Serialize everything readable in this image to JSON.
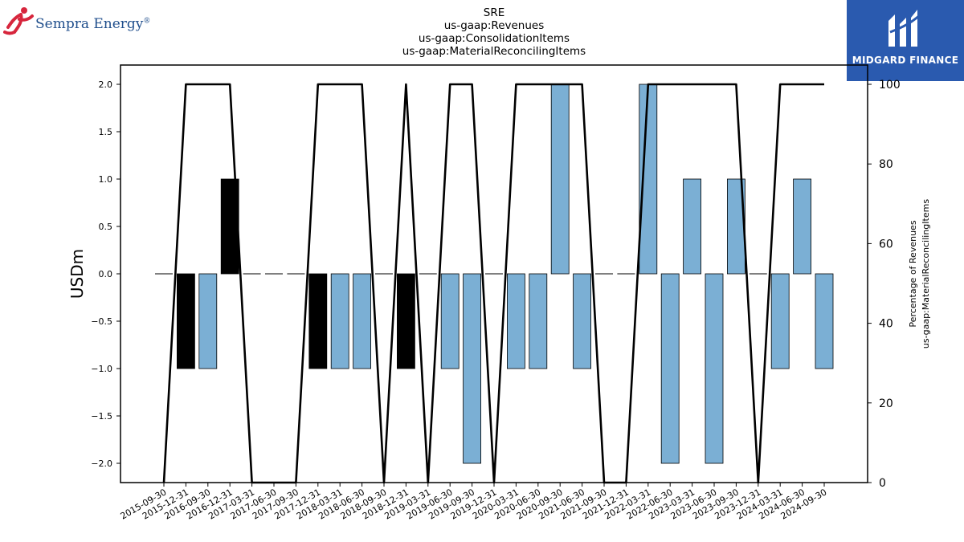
{
  "branding": {
    "left_logo_text": "Sempra Energy",
    "left_logo_mark": "®",
    "left_logo_icon": "running-figure-icon",
    "right_logo_text": "MIDGARD FINANCE",
    "right_logo_icon": "midgard-m-icon",
    "right_logo_bg": "#2a5aaf"
  },
  "chart_data": {
    "type": "bar",
    "title_lines": [
      "SRE",
      "us-gaap:Revenues",
      "us-gaap:ConsolidationItems",
      "us-gaap:MaterialReconcilingItems"
    ],
    "ylabel": "USDm",
    "y2label_lines": [
      "Percentage of Revenues",
      "us-gaap:MaterialReconcilingItems"
    ],
    "ylim": [
      -2.2,
      2.2
    ],
    "y2lim": [
      0,
      100
    ],
    "yticks": [
      "2.0",
      "1.5",
      "1.0",
      "0.5",
      "0.0",
      "−0.5",
      "−1.0",
      "−1.5",
      "−2.0"
    ],
    "y2ticks": [
      "100",
      "80",
      "60",
      "40",
      "20",
      "0"
    ],
    "categories": [
      "2015-09-30",
      "2015-12-31",
      "2016-09-30",
      "2016-12-31",
      "2017-03-31",
      "2017-06-30",
      "2017-09-30",
      "2017-12-31",
      "2018-03-31",
      "2018-06-30",
      "2018-09-30",
      "2018-12-31",
      "2019-03-31",
      "2019-06-30",
      "2019-09-30",
      "2019-12-31",
      "2020-03-31",
      "2020-06-30",
      "2020-09-30",
      "2021-06-30",
      "2021-09-30",
      "2021-12-31",
      "2022-03-31",
      "2022-06-30",
      "2023-03-31",
      "2023-06-30",
      "2023-09-30",
      "2023-12-31",
      "2024-03-31",
      "2024-06-30",
      "2024-09-30"
    ],
    "values": [
      0,
      -1,
      -1,
      1,
      0,
      0,
      0,
      -1,
      -1,
      -1,
      0,
      -1,
      0,
      -1,
      -2,
      0,
      -1,
      -1,
      2,
      -1,
      0,
      0,
      2,
      -2,
      1,
      -2,
      1,
      0,
      -1,
      1,
      -1
    ],
    "bar_colors": [
      "#000000",
      "#000000",
      "#7bafd4",
      "#000000",
      "#000000",
      "#000000",
      "#000000",
      "#000000",
      "#7bafd4",
      "#7bafd4",
      "#000000",
      "#000000",
      "#000000",
      "#7bafd4",
      "#7bafd4",
      "#000000",
      "#7bafd4",
      "#7bafd4",
      "#7bafd4",
      "#7bafd4",
      "#000000",
      "#000000",
      "#7bafd4",
      "#7bafd4",
      "#7bafd4",
      "#7bafd4",
      "#7bafd4",
      "#000000",
      "#7bafd4",
      "#7bafd4",
      "#7bafd4"
    ],
    "percentage_series": {
      "color": "#000000",
      "values": [
        0,
        100,
        100,
        100,
        0,
        0,
        0,
        100,
        100,
        100,
        0,
        100,
        0,
        100,
        100,
        0,
        100,
        100,
        100,
        100,
        0,
        0,
        100,
        100,
        100,
        100,
        100,
        0,
        100,
        100,
        100
      ]
    },
    "grid": false
  }
}
